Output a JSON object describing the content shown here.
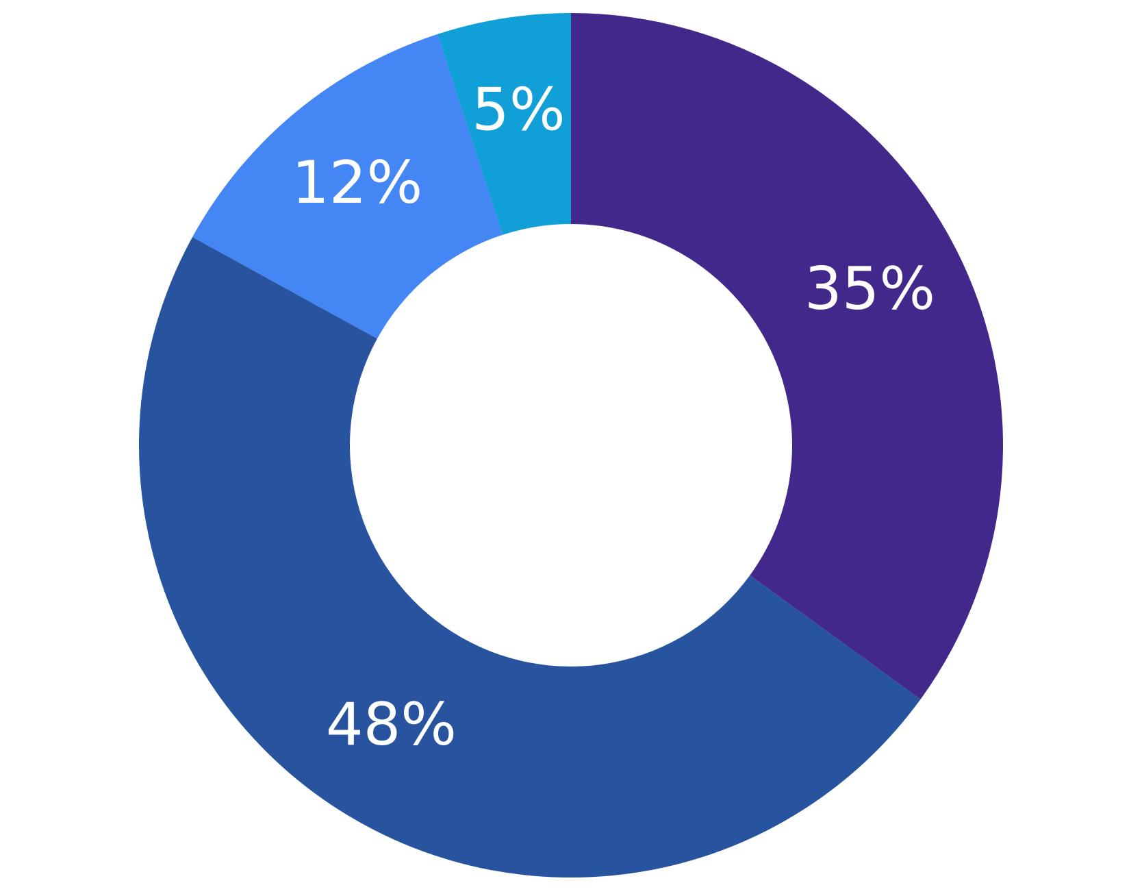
{
  "chart_data": {
    "type": "donut",
    "values": [
      35,
      48,
      12,
      5
    ],
    "value_labels": [
      "35%",
      "48%",
      "12%",
      "5%"
    ],
    "colors": [
      "#43288c",
      "#27539f",
      "#4486f4",
      "#109fd6"
    ]
  }
}
